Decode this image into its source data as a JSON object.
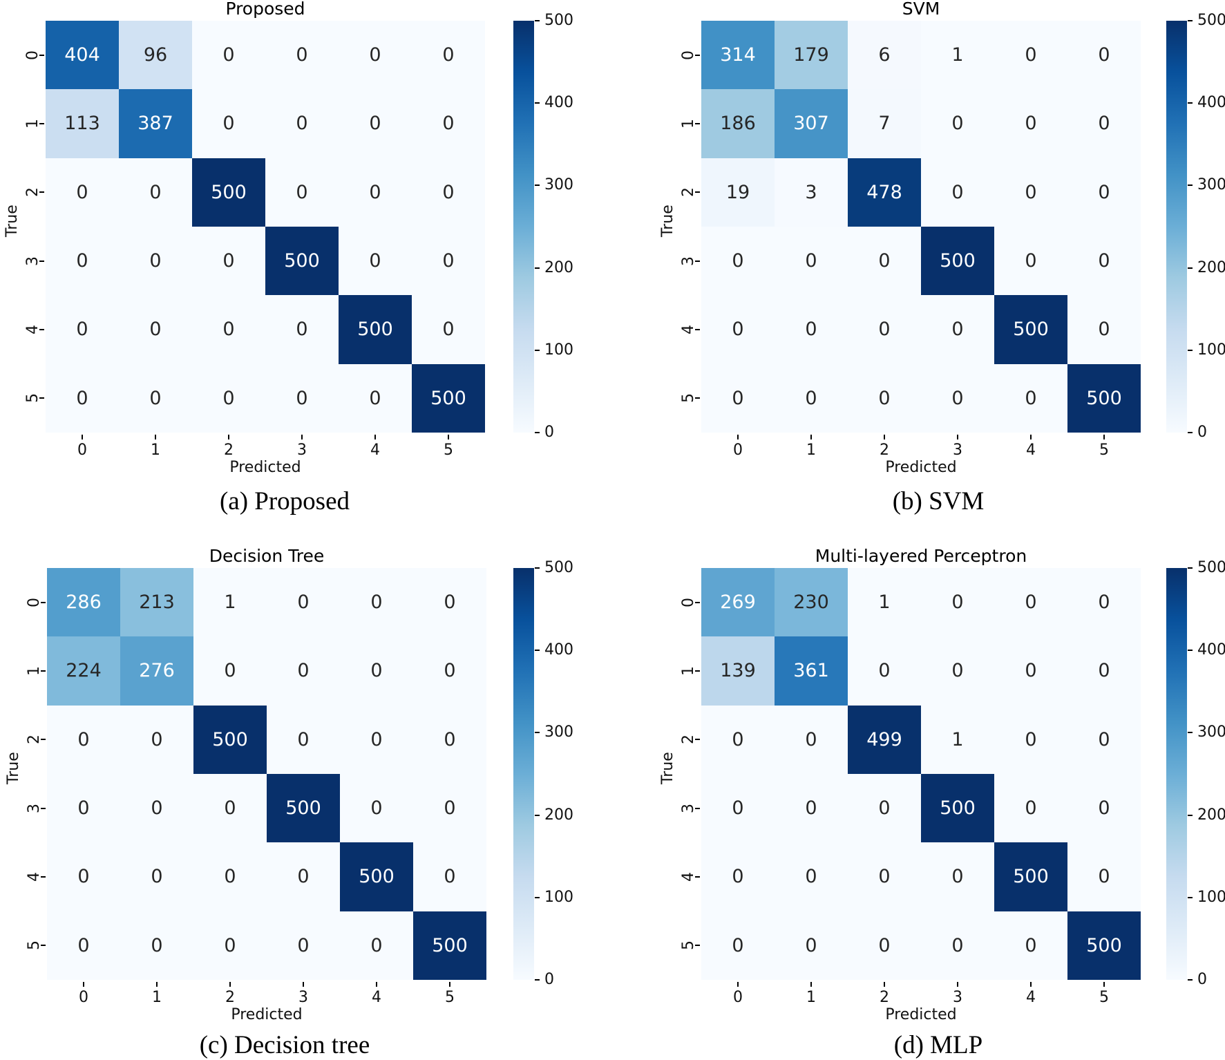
{
  "figure": {
    "background": "#ffffff",
    "colormap": {
      "name": "Blues",
      "anchors": [
        "#f7fbff",
        "#deebf7",
        "#c6dbef",
        "#9ecae1",
        "#6baed6",
        "#4292c6",
        "#2171b5",
        "#08519c",
        "#08306b"
      ]
    },
    "annotation_text": {
      "dark": "#262626",
      "light": "#ffffff"
    }
  },
  "chart_data": [
    {
      "type": "heatmap",
      "panel": "a",
      "title": "Proposed",
      "caption": "(a) Proposed",
      "xlabel": "Predicted",
      "ylabel": "True",
      "x_ticks": [
        "0",
        "1",
        "2",
        "3",
        "4",
        "5"
      ],
      "y_ticks": [
        "0",
        "1",
        "2",
        "3",
        "4",
        "5"
      ],
      "vmin": 0,
      "vmax": 500,
      "colormap": "Blues",
      "colorbar_ticks": [
        0,
        100,
        200,
        300,
        400,
        500
      ],
      "values": [
        [
          404,
          96,
          0,
          0,
          0,
          0
        ],
        [
          113,
          387,
          0,
          0,
          0,
          0
        ],
        [
          0,
          0,
          500,
          0,
          0,
          0
        ],
        [
          0,
          0,
          0,
          500,
          0,
          0
        ],
        [
          0,
          0,
          0,
          0,
          500,
          0
        ],
        [
          0,
          0,
          0,
          0,
          0,
          500
        ]
      ]
    },
    {
      "type": "heatmap",
      "panel": "b",
      "title": "SVM",
      "caption": "(b) SVM",
      "xlabel": "Predicted",
      "ylabel": "True",
      "x_ticks": [
        "0",
        "1",
        "2",
        "3",
        "4",
        "5"
      ],
      "y_ticks": [
        "0",
        "1",
        "2",
        "3",
        "4",
        "5"
      ],
      "vmin": 0,
      "vmax": 500,
      "colormap": "Blues",
      "colorbar_ticks": [
        0,
        100,
        200,
        300,
        400,
        500
      ],
      "values": [
        [
          314,
          179,
          6,
          1,
          0,
          0
        ],
        [
          186,
          307,
          7,
          0,
          0,
          0
        ],
        [
          19,
          3,
          478,
          0,
          0,
          0
        ],
        [
          0,
          0,
          0,
          500,
          0,
          0
        ],
        [
          0,
          0,
          0,
          0,
          500,
          0
        ],
        [
          0,
          0,
          0,
          0,
          0,
          500
        ]
      ]
    },
    {
      "type": "heatmap",
      "panel": "c",
      "title": "Decision Tree",
      "caption": "(c) Decision tree",
      "xlabel": "Predicted",
      "ylabel": "True",
      "x_ticks": [
        "0",
        "1",
        "2",
        "3",
        "4",
        "5"
      ],
      "y_ticks": [
        "0",
        "1",
        "2",
        "3",
        "4",
        "5"
      ],
      "vmin": 0,
      "vmax": 500,
      "colormap": "Blues",
      "colorbar_ticks": [
        0,
        100,
        200,
        300,
        400,
        500
      ],
      "values": [
        [
          286,
          213,
          1,
          0,
          0,
          0
        ],
        [
          224,
          276,
          0,
          0,
          0,
          0
        ],
        [
          0,
          0,
          500,
          0,
          0,
          0
        ],
        [
          0,
          0,
          0,
          500,
          0,
          0
        ],
        [
          0,
          0,
          0,
          0,
          500,
          0
        ],
        [
          0,
          0,
          0,
          0,
          0,
          500
        ]
      ]
    },
    {
      "type": "heatmap",
      "panel": "d",
      "title": "Multi-layered Perceptron",
      "caption": "(d) MLP",
      "xlabel": "Predicted",
      "ylabel": "True",
      "x_ticks": [
        "0",
        "1",
        "2",
        "3",
        "4",
        "5"
      ],
      "y_ticks": [
        "0",
        "1",
        "2",
        "3",
        "4",
        "5"
      ],
      "vmin": 0,
      "vmax": 500,
      "colormap": "Blues",
      "colorbar_ticks": [
        0,
        100,
        200,
        300,
        400,
        500
      ],
      "values": [
        [
          269,
          230,
          1,
          0,
          0,
          0
        ],
        [
          139,
          361,
          0,
          0,
          0,
          0
        ],
        [
          0,
          0,
          499,
          1,
          0,
          0
        ],
        [
          0,
          0,
          0,
          500,
          0,
          0
        ],
        [
          0,
          0,
          0,
          0,
          500,
          0
        ],
        [
          0,
          0,
          0,
          0,
          0,
          500
        ]
      ]
    }
  ]
}
